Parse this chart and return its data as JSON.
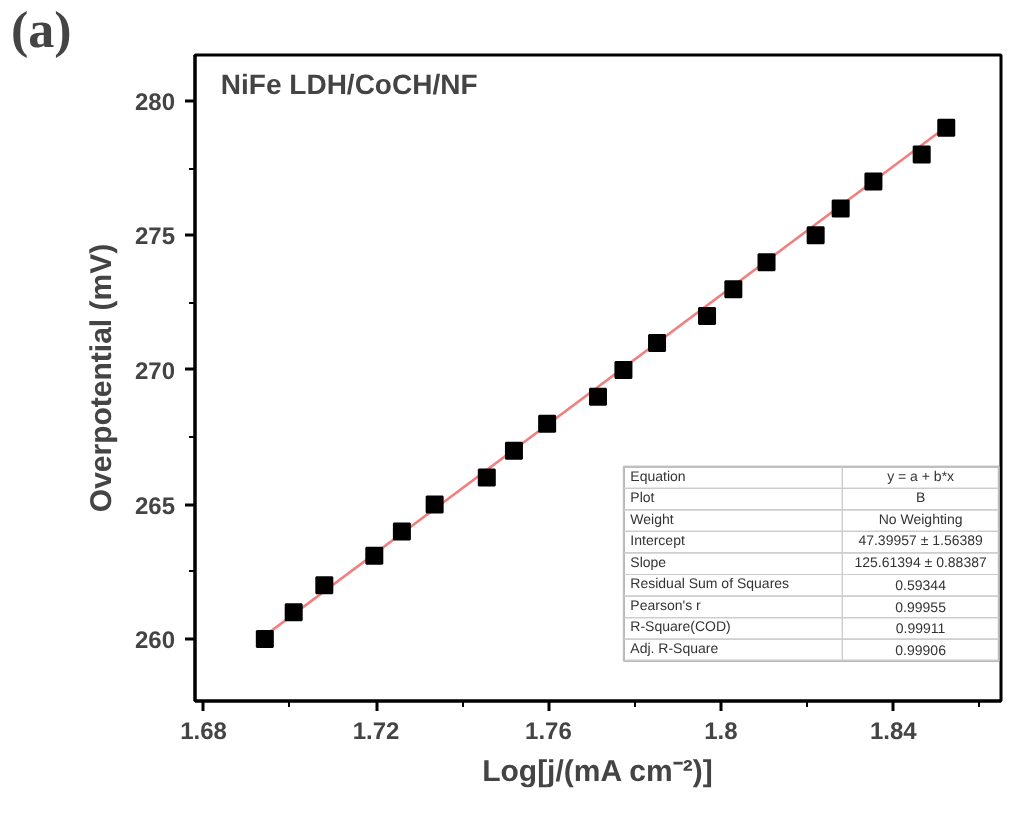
{
  "chart_data": {
    "type": "scatter",
    "title": "NiFe LDH/CoCH/NF",
    "xlabel": "Log[j/(mA cm⁻²)]",
    "ylabel": "Overpotential (mV)",
    "x": [
      1.6942,
      1.7009,
      1.708,
      1.7196,
      1.726,
      1.7336,
      1.7457,
      1.752,
      1.7597,
      1.7715,
      1.7774,
      1.7852,
      1.7968,
      1.8029,
      1.8106,
      1.822,
      1.8278,
      1.8354,
      1.8466,
      1.8523
    ],
    "series": [
      {
        "color": "#000000",
        "marker": "square",
        "values": [
          260,
          261,
          262,
          263.1,
          264,
          265,
          266,
          267,
          268,
          269,
          270,
          271,
          272,
          273,
          274,
          275,
          276,
          277,
          278,
          279
        ]
      },
      {
        "type": "line",
        "color": "#f08080",
        "x": [
          1.694,
          1.852
        ],
        "values": [
          260.1,
          279.0
        ]
      }
    ],
    "xlim": [
      1.678,
      1.865
    ],
    "ylim": [
      257.7,
      281.7
    ],
    "xticks": [
      1.68,
      1.72,
      1.76,
      1.8,
      1.84
    ],
    "yticks": [
      260,
      265,
      270,
      275,
      280
    ],
    "grid": false,
    "annotations": [
      "(a)",
      "Equation",
      "y = a + b*x",
      "Plot",
      "B",
      "Weight",
      "No Weighting",
      "Intercept",
      "47.39957 ± 1.56389",
      "Slope",
      "125.61394 ± 0.88387",
      "Residual Sum of Squares",
      "0.59344",
      "Pearson's r",
      "0.99955",
      "R-Square(COD)",
      "0.99911",
      "Adj. R-Square",
      "0.99906"
    ]
  }
}
